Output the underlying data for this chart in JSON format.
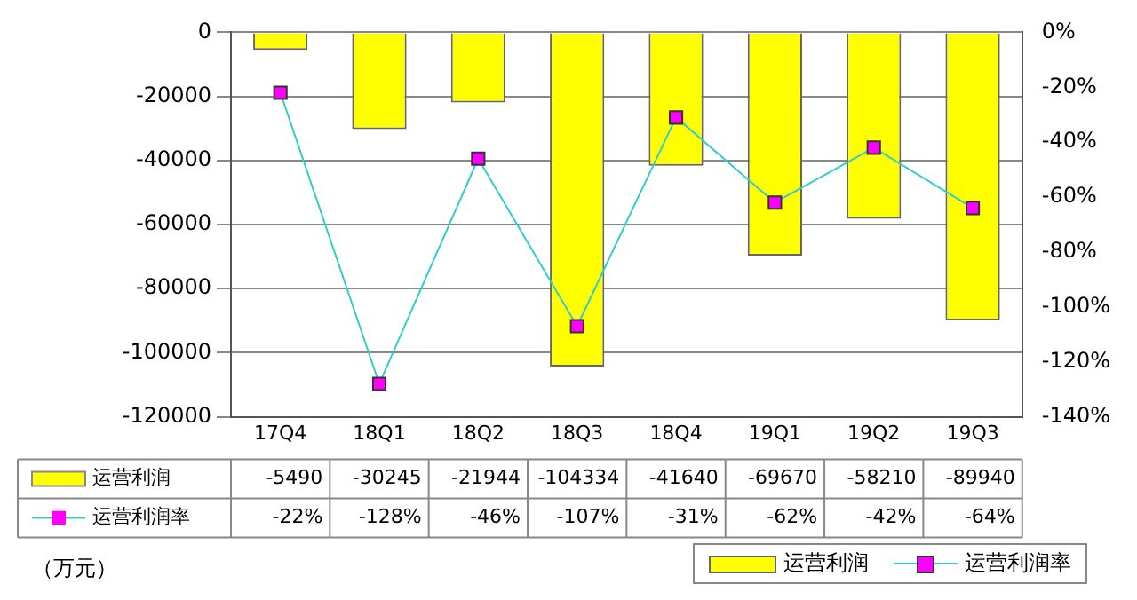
{
  "chart_data": {
    "type": "bar",
    "categories": [
      "17Q4",
      "18Q1",
      "18Q2",
      "18Q3",
      "18Q4",
      "19Q1",
      "19Q2",
      "19Q3"
    ],
    "series": [
      {
        "name": "运营利润",
        "color": "#ffff00",
        "values": [
          -5490,
          -30245,
          -21944,
          -104334,
          -41640,
          -69670,
          -58210,
          -89940
        ],
        "value_labels": [
          "-5490",
          "-30245",
          "-21944",
          "-104334",
          "-41640",
          "-69670",
          "-58210",
          "-89940"
        ]
      },
      {
        "name": "运营利润率",
        "type": "line",
        "axis": "y2",
        "color": "#33cccc",
        "values": [
          -22,
          -128,
          -46,
          -107,
          -31,
          -62,
          -42,
          -64
        ],
        "value_labels": [
          "-22%",
          "-128%",
          "-46%",
          "-107%",
          "-31%",
          "-62%",
          "-42%",
          "-64%"
        ]
      }
    ],
    "ylim": [
      -120000,
      0
    ],
    "yticks": [
      -120000,
      -100000,
      -80000,
      -60000,
      -40000,
      -20000,
      0
    ],
    "y2lim": [
      -140,
      0
    ],
    "y2ticks": [
      {
        "value": -140,
        "label": "-140%"
      },
      {
        "value": -120,
        "label": "-120%"
      },
      {
        "value": -100,
        "label": "-100%"
      },
      {
        "value": -80,
        "label": "-80%"
      },
      {
        "value": -60,
        "label": "-60%"
      },
      {
        "value": -40,
        "label": "-40%"
      },
      {
        "value": -20,
        "label": "-20%"
      },
      {
        "value": 0,
        "label": "0%"
      }
    ],
    "grid": "y",
    "legend": "bottom",
    "marker": "square",
    "annotations": [
      "（万元）"
    ]
  }
}
